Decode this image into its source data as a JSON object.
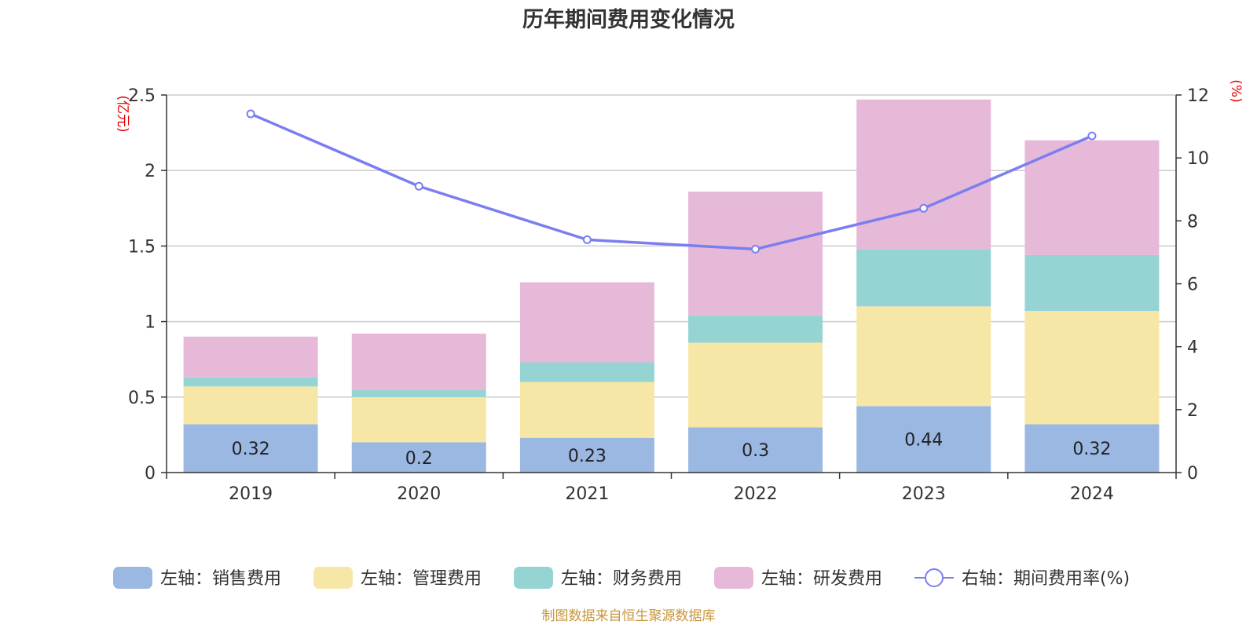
{
  "chart_data": {
    "type": "bar",
    "stacked": true,
    "title": "历年期间费用变化情况",
    "categories": [
      "2019",
      "2020",
      "2021",
      "2022",
      "2023",
      "2024"
    ],
    "left_axis": {
      "unit": "(亿元)",
      "ylim": [
        0,
        2.5
      ],
      "ticks": [
        "0",
        "0.5",
        "1",
        "1.5",
        "2",
        "2.5"
      ],
      "tick_values": [
        0,
        0.5,
        1,
        1.5,
        2,
        2.5
      ]
    },
    "right_axis": {
      "unit": "(%)",
      "ylim": [
        0,
        12
      ],
      "ticks": [
        "0",
        "2",
        "4",
        "6",
        "8",
        "10",
        "12"
      ],
      "tick_values": [
        0,
        2,
        4,
        6,
        8,
        10,
        12
      ]
    },
    "series": [
      {
        "name": "左轴：销售费用",
        "axis": "left",
        "type": "bar",
        "color": "#9bb8e3",
        "values": [
          0.32,
          0.2,
          0.23,
          0.3,
          0.44,
          0.32
        ],
        "labels": [
          "0.32",
          "0.2",
          "0.23",
          "0.3",
          "0.44",
          "0.32"
        ]
      },
      {
        "name": "左轴：管理费用",
        "axis": "left",
        "type": "bar",
        "color": "#f7e7a6",
        "values": [
          0.25,
          0.3,
          0.37,
          0.56,
          0.66,
          0.75
        ]
      },
      {
        "name": "左轴：财务费用",
        "axis": "left",
        "type": "bar",
        "color": "#96d4d4",
        "values": [
          0.06,
          0.05,
          0.13,
          0.18,
          0.38,
          0.37
        ]
      },
      {
        "name": "左轴：研发费用",
        "axis": "left",
        "type": "bar",
        "color": "#e6b9d9",
        "values": [
          0.27,
          0.37,
          0.53,
          0.82,
          0.99,
          0.76
        ]
      },
      {
        "name": "右轴：期间费用率(%)",
        "axis": "right",
        "type": "line",
        "color": "#7b7ef0",
        "values": [
          11.4,
          9.1,
          7.4,
          7.1,
          8.4,
          10.7
        ]
      }
    ],
    "grid": true,
    "legend_position": "bottom"
  },
  "source_text": "制图数据来自恒生聚源数据库"
}
